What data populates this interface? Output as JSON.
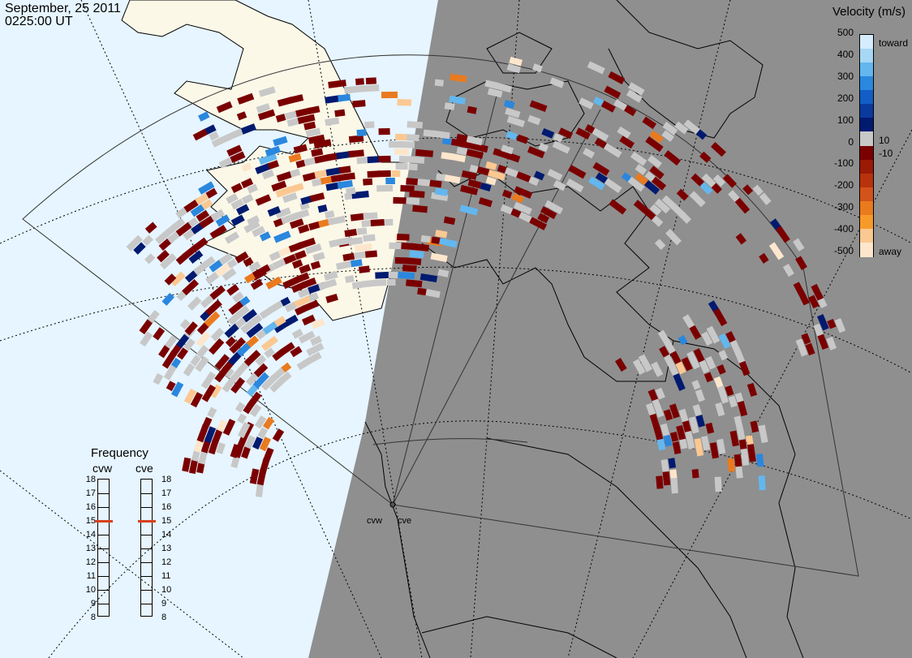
{
  "header": {
    "date": "September, 25 2011",
    "time": "0225:00 UT"
  },
  "legend": {
    "title": "Velocity (m/s)",
    "ticks": [
      "500",
      "400",
      "300",
      "200",
      "100",
      "0",
      "-100",
      "-200",
      "-300",
      "-400",
      "-500"
    ],
    "toward": "toward",
    "away": "away",
    "plus_label": "10",
    "minus_label": "-10",
    "colors": [
      "#d6ecff",
      "#a6d8f5",
      "#63b7ee",
      "#2a87de",
      "#115ec6",
      "#0a3a9e",
      "#001a70",
      "#c8c8c8",
      "#7a0000",
      "#9a1a05",
      "#b8320c",
      "#d3531a",
      "#ea7a1e",
      "#f89a2a",
      "#fbc892",
      "#fde6cc"
    ]
  },
  "frequency": {
    "title": "Frequency",
    "columns": [
      "cvw",
      "cve"
    ],
    "scale": [
      18,
      17,
      16,
      15,
      14,
      13,
      12,
      11,
      10,
      9,
      8
    ],
    "cvw_value": 15,
    "cve_value": 15
  },
  "radars": {
    "west": "cvw",
    "east": "cve"
  },
  "colors": {
    "night": "#8f8f8f",
    "ocean_day": "#e6f5ff",
    "land_day": "#fbf8e8",
    "ground_scatter": "#c8c8c8"
  }
}
